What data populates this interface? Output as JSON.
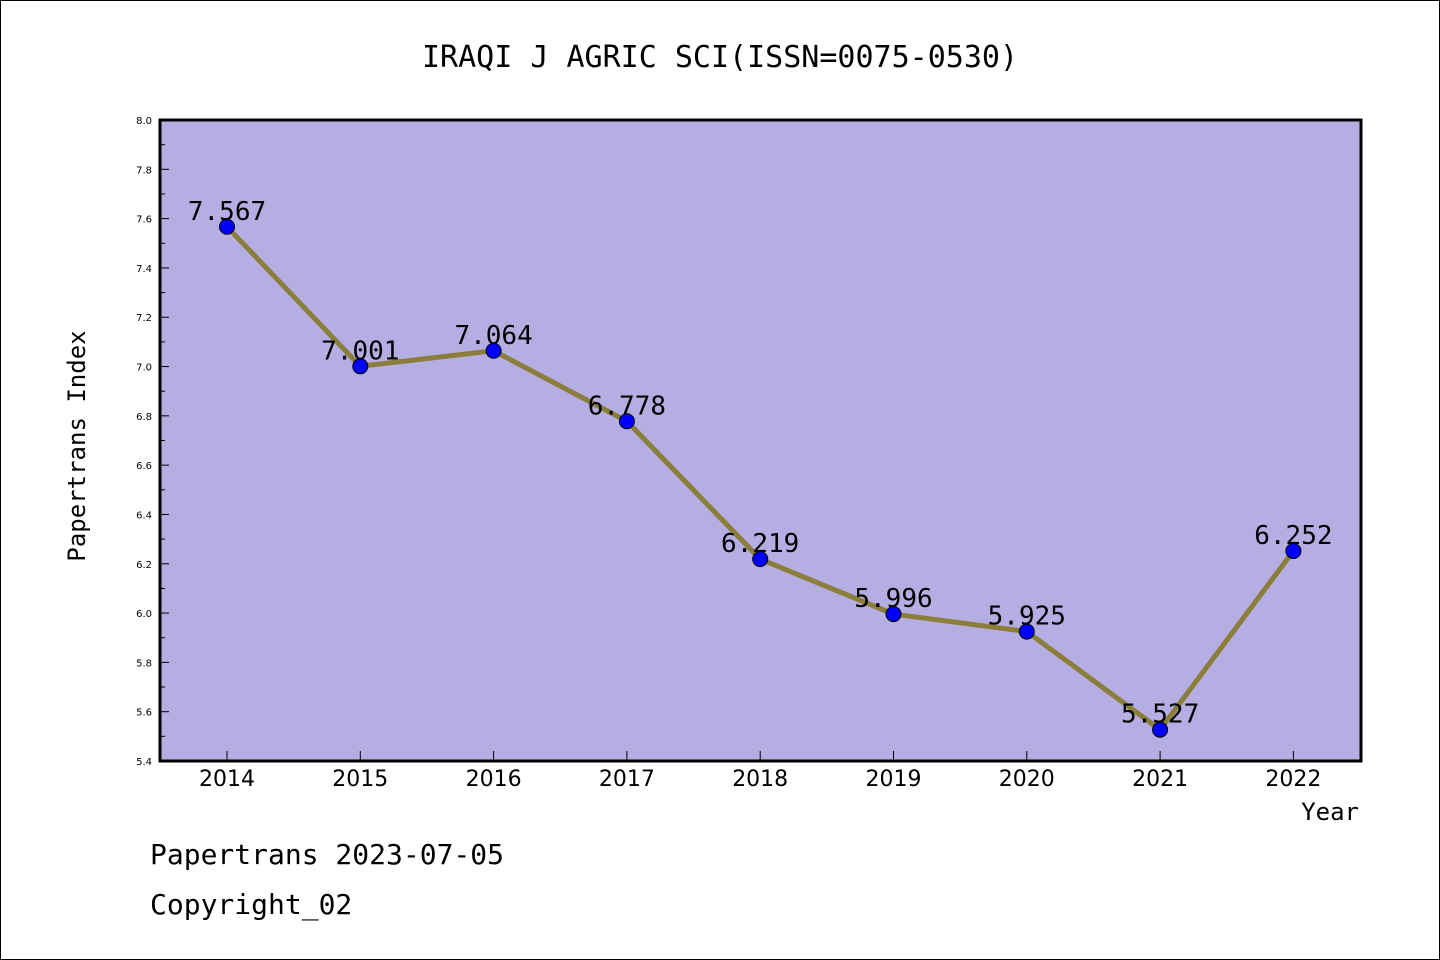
{
  "chart_data": {
    "type": "line",
    "title": "IRAQI J AGRIC SCI(ISSN=0075-0530)",
    "xlabel": "Year",
    "ylabel": "Papertrans Index",
    "categories": [
      "2014",
      "2015",
      "2016",
      "2017",
      "2018",
      "2019",
      "2020",
      "2021",
      "2022"
    ],
    "values": [
      7.567,
      7.001,
      7.064,
      6.778,
      6.219,
      5.996,
      5.925,
      5.527,
      6.252
    ],
    "data_labels": [
      "7.567",
      "7.001",
      "7.064",
      "6.778",
      "6.219",
      "5.996",
      "5.925",
      "5.527",
      "6.252"
    ],
    "ylim": [
      5.4,
      8.0
    ],
    "y_ticks": [
      "5.4",
      "5.6",
      "5.8",
      "6.0",
      "6.2",
      "6.4",
      "6.6",
      "6.8",
      "7.0",
      "7.2",
      "7.4",
      "7.6",
      "7.8",
      "8.0"
    ],
    "grid": false,
    "plot_background": "#b4aee2",
    "line_color": "#8b7d3a",
    "marker_color": "#0000ff"
  },
  "footer": {
    "line1": "Papertrans 2023-07-05",
    "line2": "Copyright_02"
  }
}
